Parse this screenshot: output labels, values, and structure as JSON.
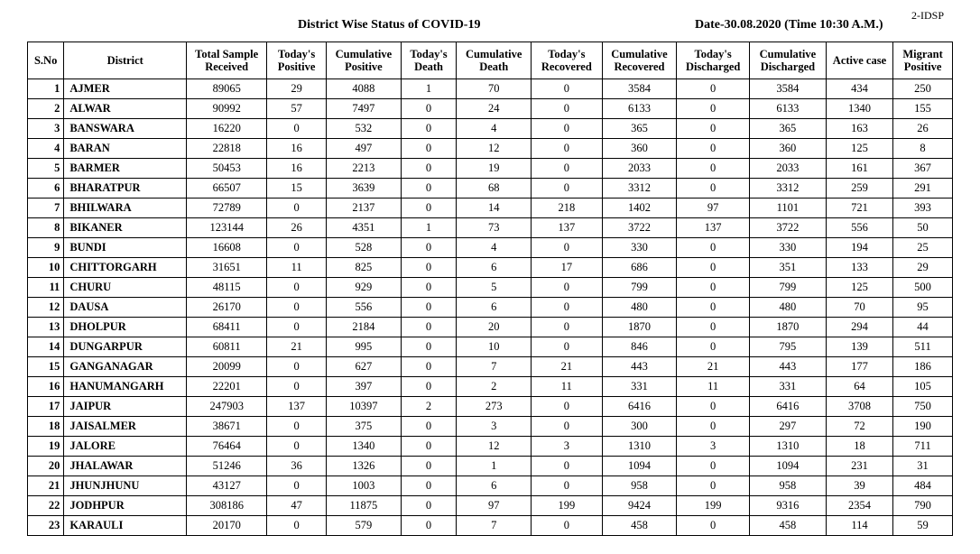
{
  "header": {
    "title": "District Wise Status of  COVID-19",
    "date": "Date-30.08.2020 (Time 10:30 A.M.)",
    "pagecode": "2-IDSP"
  },
  "columns": [
    "S.No",
    "District",
    "Total Sample Received",
    "Today's Positive",
    "Cumulative Positive",
    "Today's Death",
    "Cumulative Death",
    "Today's Recovered",
    "Cumulative Recovered",
    "Today's Discharged",
    "Cumulative Discharged",
    "Active case",
    "Migrant Positive"
  ],
  "rows": [
    {
      "sno": 1,
      "district": "AJMER",
      "sample": 89065,
      "tpos": 29,
      "cpos": 4088,
      "tdth": 1,
      "cdth": 70,
      "trec": 0,
      "crec": 3584,
      "tdis": 0,
      "cdis": 3584,
      "act": 434,
      "mig": 250
    },
    {
      "sno": 2,
      "district": "ALWAR",
      "sample": 90992,
      "tpos": 57,
      "cpos": 7497,
      "tdth": 0,
      "cdth": 24,
      "trec": 0,
      "crec": 6133,
      "tdis": 0,
      "cdis": 6133,
      "act": 1340,
      "mig": 155
    },
    {
      "sno": 3,
      "district": "BANSWARA",
      "sample": 16220,
      "tpos": 0,
      "cpos": 532,
      "tdth": 0,
      "cdth": 4,
      "trec": 0,
      "crec": 365,
      "tdis": 0,
      "cdis": 365,
      "act": 163,
      "mig": 26
    },
    {
      "sno": 4,
      "district": "BARAN",
      "sample": 22818,
      "tpos": 16,
      "cpos": 497,
      "tdth": 0,
      "cdth": 12,
      "trec": 0,
      "crec": 360,
      "tdis": 0,
      "cdis": 360,
      "act": 125,
      "mig": 8
    },
    {
      "sno": 5,
      "district": "BARMER",
      "sample": 50453,
      "tpos": 16,
      "cpos": 2213,
      "tdth": 0,
      "cdth": 19,
      "trec": 0,
      "crec": 2033,
      "tdis": 0,
      "cdis": 2033,
      "act": 161,
      "mig": 367
    },
    {
      "sno": 6,
      "district": "BHARATPUR",
      "sample": 66507,
      "tpos": 15,
      "cpos": 3639,
      "tdth": 0,
      "cdth": 68,
      "trec": 0,
      "crec": 3312,
      "tdis": 0,
      "cdis": 3312,
      "act": 259,
      "mig": 291
    },
    {
      "sno": 7,
      "district": "BHILWARA",
      "sample": 72789,
      "tpos": 0,
      "cpos": 2137,
      "tdth": 0,
      "cdth": 14,
      "trec": 218,
      "crec": 1402,
      "tdis": 97,
      "cdis": 1101,
      "act": 721,
      "mig": 393
    },
    {
      "sno": 8,
      "district": "BIKANER",
      "sample": 123144,
      "tpos": 26,
      "cpos": 4351,
      "tdth": 1,
      "cdth": 73,
      "trec": 137,
      "crec": 3722,
      "tdis": 137,
      "cdis": 3722,
      "act": 556,
      "mig": 50
    },
    {
      "sno": 9,
      "district": "BUNDI",
      "sample": 16608,
      "tpos": 0,
      "cpos": 528,
      "tdth": 0,
      "cdth": 4,
      "trec": 0,
      "crec": 330,
      "tdis": 0,
      "cdis": 330,
      "act": 194,
      "mig": 25
    },
    {
      "sno": 10,
      "district": "CHITTORGARH",
      "sample": 31651,
      "tpos": 11,
      "cpos": 825,
      "tdth": 0,
      "cdth": 6,
      "trec": 17,
      "crec": 686,
      "tdis": 0,
      "cdis": 351,
      "act": 133,
      "mig": 29
    },
    {
      "sno": 11,
      "district": "CHURU",
      "sample": 48115,
      "tpos": 0,
      "cpos": 929,
      "tdth": 0,
      "cdth": 5,
      "trec": 0,
      "crec": 799,
      "tdis": 0,
      "cdis": 799,
      "act": 125,
      "mig": 500
    },
    {
      "sno": 12,
      "district": "DAUSA",
      "sample": 26170,
      "tpos": 0,
      "cpos": 556,
      "tdth": 0,
      "cdth": 6,
      "trec": 0,
      "crec": 480,
      "tdis": 0,
      "cdis": 480,
      "act": 70,
      "mig": 95
    },
    {
      "sno": 13,
      "district": "DHOLPUR",
      "sample": 68411,
      "tpos": 0,
      "cpos": 2184,
      "tdth": 0,
      "cdth": 20,
      "trec": 0,
      "crec": 1870,
      "tdis": 0,
      "cdis": 1870,
      "act": 294,
      "mig": 44
    },
    {
      "sno": 14,
      "district": "DUNGARPUR",
      "sample": 60811,
      "tpos": 21,
      "cpos": 995,
      "tdth": 0,
      "cdth": 10,
      "trec": 0,
      "crec": 846,
      "tdis": 0,
      "cdis": 795,
      "act": 139,
      "mig": 511
    },
    {
      "sno": 15,
      "district": "GANGANAGAR",
      "sample": 20099,
      "tpos": 0,
      "cpos": 627,
      "tdth": 0,
      "cdth": 7,
      "trec": 21,
      "crec": 443,
      "tdis": 21,
      "cdis": 443,
      "act": 177,
      "mig": 186
    },
    {
      "sno": 16,
      "district": "HANUMANGARH",
      "sample": 22201,
      "tpos": 0,
      "cpos": 397,
      "tdth": 0,
      "cdth": 2,
      "trec": 11,
      "crec": 331,
      "tdis": 11,
      "cdis": 331,
      "act": 64,
      "mig": 105
    },
    {
      "sno": 17,
      "district": "JAIPUR",
      "sample": 247903,
      "tpos": 137,
      "cpos": 10397,
      "tdth": 2,
      "cdth": 273,
      "trec": 0,
      "crec": 6416,
      "tdis": 0,
      "cdis": 6416,
      "act": 3708,
      "mig": 750
    },
    {
      "sno": 18,
      "district": "JAISALMER",
      "sample": 38671,
      "tpos": 0,
      "cpos": 375,
      "tdth": 0,
      "cdth": 3,
      "trec": 0,
      "crec": 300,
      "tdis": 0,
      "cdis": 297,
      "act": 72,
      "mig": 190
    },
    {
      "sno": 19,
      "district": "JALORE",
      "sample": 76464,
      "tpos": 0,
      "cpos": 1340,
      "tdth": 0,
      "cdth": 12,
      "trec": 3,
      "crec": 1310,
      "tdis": 3,
      "cdis": 1310,
      "act": 18,
      "mig": 711
    },
    {
      "sno": 20,
      "district": "JHALAWAR",
      "sample": 51246,
      "tpos": 36,
      "cpos": 1326,
      "tdth": 0,
      "cdth": 1,
      "trec": 0,
      "crec": 1094,
      "tdis": 0,
      "cdis": 1094,
      "act": 231,
      "mig": 31
    },
    {
      "sno": 21,
      "district": "JHUNJHUNU",
      "sample": 43127,
      "tpos": 0,
      "cpos": 1003,
      "tdth": 0,
      "cdth": 6,
      "trec": 0,
      "crec": 958,
      "tdis": 0,
      "cdis": 958,
      "act": 39,
      "mig": 484
    },
    {
      "sno": 22,
      "district": "JODHPUR",
      "sample": 308186,
      "tpos": 47,
      "cpos": 11875,
      "tdth": 0,
      "cdth": 97,
      "trec": 199,
      "crec": 9424,
      "tdis": 199,
      "cdis": 9316,
      "act": 2354,
      "mig": 790
    },
    {
      "sno": 23,
      "district": "KARAULI",
      "sample": 20170,
      "tpos": 0,
      "cpos": 579,
      "tdth": 0,
      "cdth": 7,
      "trec": 0,
      "crec": 458,
      "tdis": 0,
      "cdis": 458,
      "act": 114,
      "mig": 59
    }
  ]
}
